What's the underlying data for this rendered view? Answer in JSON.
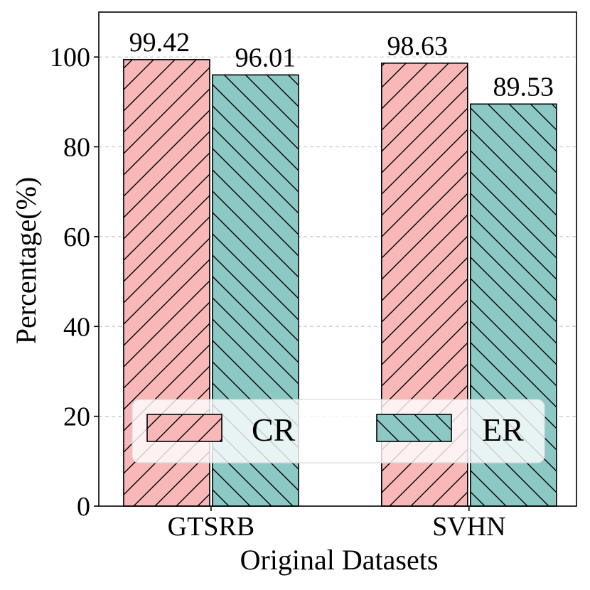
{
  "chart_data": {
    "type": "bar",
    "categories": [
      "GTSRB",
      "SVHN"
    ],
    "series": [
      {
        "name": "CR",
        "values": [
          99.42,
          98.63
        ],
        "color": "#f8b8b8",
        "hatch": "forward-diagonal"
      },
      {
        "name": "ER",
        "values": [
          96.01,
          89.53
        ],
        "color": "#8cc9c5",
        "hatch": "back-diagonal"
      }
    ],
    "data_labels": [
      [
        "99.42",
        "98.63"
      ],
      [
        "96.01",
        "89.53"
      ]
    ],
    "xlabel": "Original Datasets",
    "ylabel": "Percentage(%)",
    "ylim": [
      0,
      110
    ],
    "yticks": [
      0,
      20,
      40,
      60,
      80,
      100
    ],
    "grid": true,
    "legend_position": "lower-center"
  }
}
